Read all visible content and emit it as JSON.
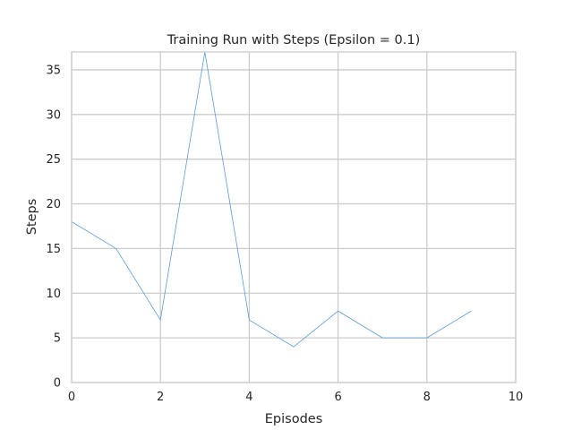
{
  "chart_data": {
    "type": "line",
    "title": "Training Run with Steps (Epsilon = 0.1)",
    "xlabel": "Episodes",
    "ylabel": "Steps",
    "xlim": [
      0,
      10
    ],
    "ylim": [
      0,
      37
    ],
    "xticks": [
      0,
      2,
      4,
      6,
      8,
      10
    ],
    "yticks": [
      0,
      5,
      10,
      15,
      20,
      25,
      30,
      35
    ],
    "grid": true,
    "series": [
      {
        "x": [
          0,
          1,
          2,
          3,
          4,
          5,
          6,
          7,
          8,
          9
        ],
        "y": [
          18,
          15,
          7,
          37,
          7,
          4,
          8,
          5,
          5,
          8
        ],
        "color": "#5b9bd5"
      }
    ],
    "colors": {
      "grid": "#cccccc",
      "frame": "#cccccc",
      "text": "#262626"
    }
  }
}
